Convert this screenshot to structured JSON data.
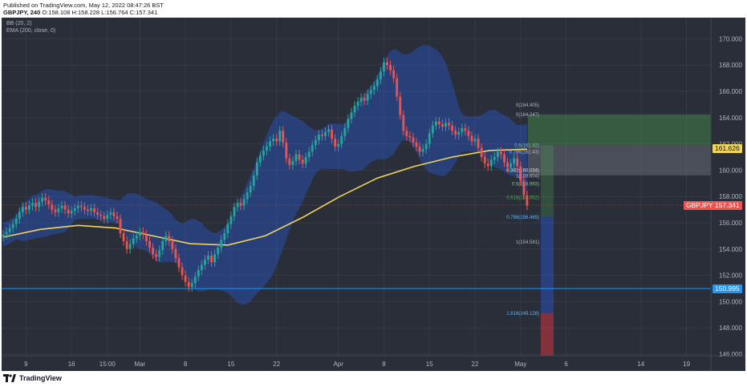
{
  "header": {
    "published": "Published on TradingView.com, May 12, 2022 08:47:26 BST",
    "symbol_line": "GBPJPY, 240",
    "ohlc": "O:158.108 H:158.228 L:156.764 C:157.341"
  },
  "indicators": [
    "BB (20, 2)",
    "EMA (200, close, 0)"
  ],
  "footer": {
    "brand": "TradingView"
  },
  "colors": {
    "background": "#2a2e39",
    "bull_candle": "#26a69a",
    "bear_candle": "#ef5350",
    "bollinger_fill": "#2962ff",
    "ema_line": "#f0d55a",
    "support_line": "#2196f3",
    "profit_zone": "#4caf50",
    "stop_zone": "#f23645"
  },
  "chart_data": {
    "type": "candlestick",
    "symbol": "GBPJPY",
    "timeframe": "240",
    "ylim": [
      145.5,
      171.0
    ],
    "y_ticks": [
      "146.000",
      "148.000",
      "150.000",
      "152.000",
      "154.000",
      "156.000",
      "158.000",
      "160.000",
      "162.000",
      "164.000",
      "166.000",
      "168.000",
      "170.000"
    ],
    "x_ticks": [
      {
        "label": "9",
        "i": 7
      },
      {
        "label": "16",
        "i": 21
      },
      {
        "label": "15:00",
        "i": 32
      },
      {
        "label": "Mar",
        "i": 42
      },
      {
        "label": "8",
        "i": 56
      },
      {
        "label": "15",
        "i": 70
      },
      {
        "label": "22",
        "i": 84
      },
      {
        "label": "Apr",
        "i": 103
      },
      {
        "label": "8",
        "i": 117
      },
      {
        "label": "15",
        "i": 131
      },
      {
        "label": "22",
        "i": 145
      },
      {
        "label": "May",
        "i": 159
      },
      {
        "label": "6",
        "i": 173
      },
      {
        "label": "14",
        "i": 196
      },
      {
        "label": "19",
        "i": 210
      }
    ],
    "total_slots": 218,
    "closes": [
      155.1,
      155.3,
      155.6,
      155.9,
      156.3,
      156.8,
      157.2,
      157.0,
      157.3,
      157.5,
      157.2,
      157.6,
      157.9,
      157.7,
      157.4,
      157.0,
      156.8,
      157.1,
      157.3,
      157.0,
      156.7,
      156.9,
      157.1,
      157.3,
      157.2,
      157.0,
      156.9,
      157.1,
      156.8,
      156.6,
      156.5,
      156.3,
      156.6,
      156.8,
      156.5,
      156.3,
      155.2,
      154.6,
      154.0,
      154.4,
      154.8,
      155.0,
      155.3,
      155.1,
      154.6,
      154.1,
      153.6,
      153.4,
      153.9,
      154.6,
      155.0,
      154.6,
      154.0,
      153.3,
      152.6,
      152.0,
      151.5,
      151.1,
      151.4,
      151.9,
      152.4,
      152.8,
      153.2,
      153.5,
      153.0,
      153.6,
      154.1,
      154.7,
      155.2,
      155.9,
      156.5,
      157.2,
      157.5,
      157.3,
      157.8,
      158.3,
      158.8,
      159.6,
      160.6,
      161.1,
      161.5,
      161.8,
      162.2,
      162.4,
      162.2,
      163.0,
      162.1,
      160.9,
      160.4,
      160.7,
      161.2,
      160.8,
      160.5,
      161.0,
      161.4,
      161.9,
      162.3,
      162.7,
      162.6,
      162.9,
      163.1,
      162.4,
      161.8,
      162.0,
      162.6,
      163.2,
      163.9,
      164.4,
      164.9,
      165.2,
      165.5,
      165.3,
      165.8,
      166.1,
      166.4,
      166.9,
      167.5,
      168.2,
      168.0,
      167.6,
      167.0,
      165.6,
      164.2,
      163.0,
      162.6,
      162.5,
      162.1,
      161.8,
      161.4,
      161.6,
      162.0,
      162.8,
      163.4,
      163.7,
      163.5,
      163.3,
      163.6,
      163.4,
      163.0,
      162.7,
      162.9,
      163.2,
      163.0,
      162.6,
      162.2,
      162.4,
      161.7,
      161.0,
      160.5,
      160.3,
      160.8,
      161.0,
      161.4,
      161.2,
      160.6,
      160.2,
      160.5,
      160.9,
      160.3,
      159.2,
      158.1,
      157.3
    ],
    "ema_200": {
      "start_i": 0,
      "values": [
        154.9,
        155.5,
        155.8,
        155.6,
        155.0,
        154.4,
        154.3,
        155.0,
        156.4,
        158.0,
        159.4,
        160.3,
        161.0,
        161.5,
        161.6
      ]
    },
    "fib_levels": [
      {
        "ratio": "0",
        "price": 164.247,
        "label": "0(164.247)"
      },
      {
        "ratio": "0.5",
        "price": 161.92,
        "label": "0.5(161.92)"
      },
      {
        "ratio": "0.382",
        "price": 160.034,
        "label": "0.382(160.034)"
      },
      {
        "ratio": "1",
        "price": 159.604,
        "label": "1(159.604)"
      },
      {
        "ratio": "0.5",
        "price": 158.993,
        "label": "0.5(158.993)"
      },
      {
        "ratio": "0.618",
        "price": 157.952,
        "label": "0.618(157.952)"
      },
      {
        "ratio": "0.786",
        "price": 156.469,
        "label": "0.786(156.469)"
      },
      {
        "ratio": "1",
        "price": 154.581,
        "label": "1(154.581)"
      },
      {
        "ratio": "1.618",
        "price": 149.128,
        "label": "1.618(149.128)"
      }
    ],
    "fib_extra_labels": [
      "0(164.405)",
      "0.786(161.43)"
    ],
    "position": {
      "entry": 161.92,
      "target": 164.247,
      "stop": 159.604
    },
    "support_level": 150.995,
    "price_tags": [
      {
        "label": "161.626",
        "price": 161.626,
        "kind": "ema"
      },
      {
        "label": "GBPJPY",
        "price": 157.341,
        "kind": "symbol"
      },
      {
        "label": "157.341",
        "price": 157.341,
        "kind": "last"
      },
      {
        "label": "150.995",
        "price": 150.995,
        "kind": "support"
      }
    ]
  }
}
